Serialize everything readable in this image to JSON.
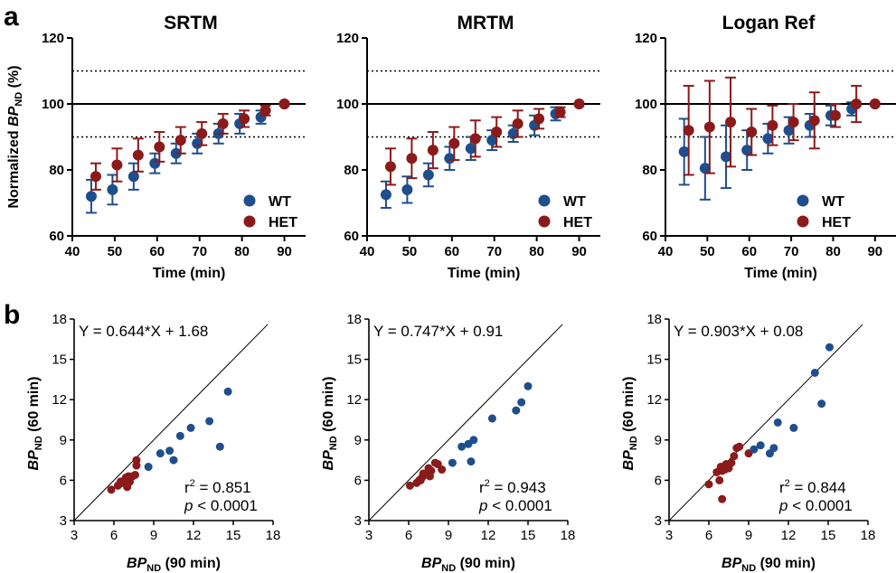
{
  "panel_labels": [
    "a",
    "b"
  ],
  "colors": {
    "WT": "#1f4e8c",
    "HET": "#8b1a1a"
  },
  "chart_data": [
    {
      "type": "scatter",
      "title": "SRTM",
      "xlabel": "Time (min)",
      "ylabel": "Normalized BP_ND (%)",
      "xlim": [
        40,
        95
      ],
      "ylim": [
        60,
        120
      ],
      "xticks": [
        40,
        50,
        60,
        70,
        80,
        90
      ],
      "yticks": [
        60,
        80,
        100,
        120
      ],
      "reference_lines": {
        "solid": [
          100
        ],
        "dotted": [
          90,
          110
        ]
      },
      "legend_position": "bottom-right",
      "series": [
        {
          "name": "WT",
          "x": [
            45,
            50,
            55,
            60,
            65,
            70,
            75,
            80,
            85,
            90
          ],
          "y": [
            72,
            74,
            78,
            82,
            85,
            88,
            91,
            94,
            96,
            100
          ],
          "err": [
            5,
            4.5,
            4,
            3,
            3,
            3,
            3,
            3,
            2,
            0
          ]
        },
        {
          "name": "HET",
          "x": [
            45,
            50,
            55,
            60,
            65,
            70,
            75,
            80,
            85,
            90
          ],
          "y": [
            78,
            81.5,
            84.5,
            87,
            89,
            91,
            94,
            95.5,
            98,
            100
          ],
          "err": [
            4,
            5,
            5,
            4.5,
            4,
            3.5,
            3,
            2.5,
            1.5,
            0
          ]
        }
      ]
    },
    {
      "type": "scatter",
      "title": "MRTM",
      "xlabel": "Time (min)",
      "ylabel": "",
      "xlim": [
        40,
        95
      ],
      "ylim": [
        60,
        120
      ],
      "xticks": [
        40,
        50,
        60,
        70,
        80,
        90
      ],
      "yticks": [
        60,
        80,
        100,
        120
      ],
      "reference_lines": {
        "solid": [
          100
        ],
        "dotted": [
          90,
          110
        ]
      },
      "legend_position": "bottom-right",
      "series": [
        {
          "name": "WT",
          "x": [
            45,
            50,
            55,
            60,
            65,
            70,
            75,
            80,
            85,
            90
          ],
          "y": [
            72.5,
            74,
            78.5,
            83.5,
            86.5,
            89,
            91,
            93.5,
            97,
            100
          ],
          "err": [
            4,
            4,
            3.5,
            3.5,
            3.5,
            3,
            2.5,
            3,
            2,
            0
          ]
        },
        {
          "name": "HET",
          "x": [
            45,
            50,
            55,
            60,
            65,
            70,
            75,
            80,
            85,
            90
          ],
          "y": [
            81,
            83.5,
            86,
            88,
            89.5,
            91.5,
            94,
            95.5,
            97.5,
            100
          ],
          "err": [
            5.5,
            6,
            5.5,
            5,
            5.5,
            4.5,
            4,
            3,
            1.5,
            0
          ]
        }
      ]
    },
    {
      "type": "scatter",
      "title": "Logan Ref",
      "xlabel": "Time (min)",
      "ylabel": "",
      "xlim": [
        40,
        95
      ],
      "ylim": [
        60,
        120
      ],
      "xticks": [
        40,
        50,
        60,
        70,
        80,
        90
      ],
      "yticks": [
        60,
        80,
        100,
        120
      ],
      "reference_lines": {
        "solid": [
          100
        ],
        "dotted": [
          90,
          110
        ]
      },
      "legend_position": "bottom-right",
      "series": [
        {
          "name": "WT",
          "x": [
            45,
            50,
            55,
            60,
            65,
            70,
            75,
            80,
            85,
            90
          ],
          "y": [
            85.5,
            80.5,
            84,
            86,
            89.5,
            92,
            93.5,
            96.5,
            98.5,
            100
          ],
          "err": [
            10,
            9.5,
            9.5,
            6,
            4.5,
            4,
            3.5,
            3,
            2,
            0
          ]
        },
        {
          "name": "HET",
          "x": [
            45,
            50,
            55,
            60,
            65,
            70,
            75,
            80,
            85,
            90
          ],
          "y": [
            92,
            93,
            94.5,
            91.5,
            93.5,
            94.5,
            95,
            96.5,
            100,
            100
          ],
          "err": [
            13.5,
            14,
            13.5,
            7,
            6,
            5.5,
            8.5,
            3.5,
            5.5,
            0
          ]
        }
      ]
    },
    {
      "type": "scatter",
      "title": "",
      "xlabel": "BP_ND (90 min)",
      "ylabel": "BP_ND (60 min)",
      "xlim": [
        3,
        18
      ],
      "ylim": [
        3,
        18
      ],
      "xticks": [
        3,
        6,
        9,
        12,
        15,
        18
      ],
      "yticks": [
        3,
        6,
        9,
        12,
        15,
        18
      ],
      "identity_line": true,
      "equation": "Y = 0.644*X + 1.68",
      "r2": "0.851",
      "p": "< 0.0001",
      "series": [
        {
          "name": "WT",
          "x": [
            8.6,
            9.5,
            10.2,
            10.5,
            11.0,
            11.8,
            13.2,
            14.0,
            14.6
          ],
          "y": [
            7.0,
            8.0,
            8.2,
            7.5,
            9.3,
            9.9,
            10.4,
            8.5,
            12.6
          ]
        },
        {
          "name": "HET",
          "x": [
            5.8,
            6.3,
            6.6,
            6.8,
            6.9,
            7.0,
            7.1,
            7.2,
            7.4,
            7.6,
            7.7,
            7.7,
            7.0,
            6.5
          ],
          "y": [
            5.3,
            5.6,
            5.8,
            6.0,
            6.2,
            5.5,
            6.3,
            5.9,
            6.3,
            6.4,
            7.1,
            7.5,
            5.6,
            5.9
          ]
        }
      ]
    },
    {
      "type": "scatter",
      "title": "",
      "xlabel": "BP_ND (90 min)",
      "ylabel": "BP_ND (60 min)",
      "xlim": [
        3,
        18
      ],
      "ylim": [
        3,
        18
      ],
      "xticks": [
        3,
        6,
        9,
        12,
        15,
        18
      ],
      "yticks": [
        3,
        6,
        9,
        12,
        15,
        18
      ],
      "identity_line": true,
      "equation": "Y = 0.747*X + 0.91",
      "r2": "0.943",
      "p": "< 0.0001",
      "series": [
        {
          "name": "WT",
          "x": [
            9.3,
            10.0,
            10.5,
            10.9,
            10.7,
            12.3,
            14.1,
            14.5,
            15.0
          ],
          "y": [
            7.3,
            8.5,
            8.7,
            9.0,
            7.4,
            10.6,
            11.2,
            11.8,
            13.0
          ]
        },
        {
          "name": "HET",
          "x": [
            6.1,
            6.6,
            6.8,
            7.0,
            7.1,
            7.2,
            7.5,
            7.6,
            7.7,
            8.0,
            8.2,
            8.5,
            6.9
          ],
          "y": [
            5.6,
            5.8,
            6.0,
            6.2,
            6.5,
            6.4,
            6.9,
            6.3,
            6.7,
            7.3,
            7.2,
            6.8,
            6.0
          ]
        }
      ]
    },
    {
      "type": "scatter",
      "title": "",
      "xlabel": "BP_ND (90 min)",
      "ylabel": "BP_ND (60 min)",
      "xlim": [
        3,
        18
      ],
      "ylim": [
        3,
        18
      ],
      "xticks": [
        3,
        6,
        9,
        12,
        15,
        18
      ],
      "yticks": [
        3,
        6,
        9,
        12,
        15,
        18
      ],
      "identity_line": true,
      "equation": "Y = 0.903*X + 0.08",
      "r2": "0.844",
      "p": "< 0.0001",
      "series": [
        {
          "name": "WT",
          "x": [
            9.4,
            9.9,
            10.6,
            10.9,
            11.2,
            12.4,
            14.0,
            14.5,
            15.1
          ],
          "y": [
            8.3,
            8.6,
            8.0,
            8.4,
            10.3,
            9.9,
            14.0,
            11.7,
            15.9
          ]
        },
        {
          "name": "HET",
          "x": [
            6.0,
            6.6,
            6.8,
            6.9,
            7.0,
            7.2,
            7.3,
            7.5,
            7.7,
            7.9,
            8.1,
            8.3,
            9.0,
            7.0
          ],
          "y": [
            5.7,
            6.6,
            6.0,
            7.0,
            6.7,
            6.8,
            7.2,
            6.9,
            7.3,
            7.8,
            8.4,
            8.5,
            8.0,
            4.6
          ]
        }
      ]
    }
  ]
}
